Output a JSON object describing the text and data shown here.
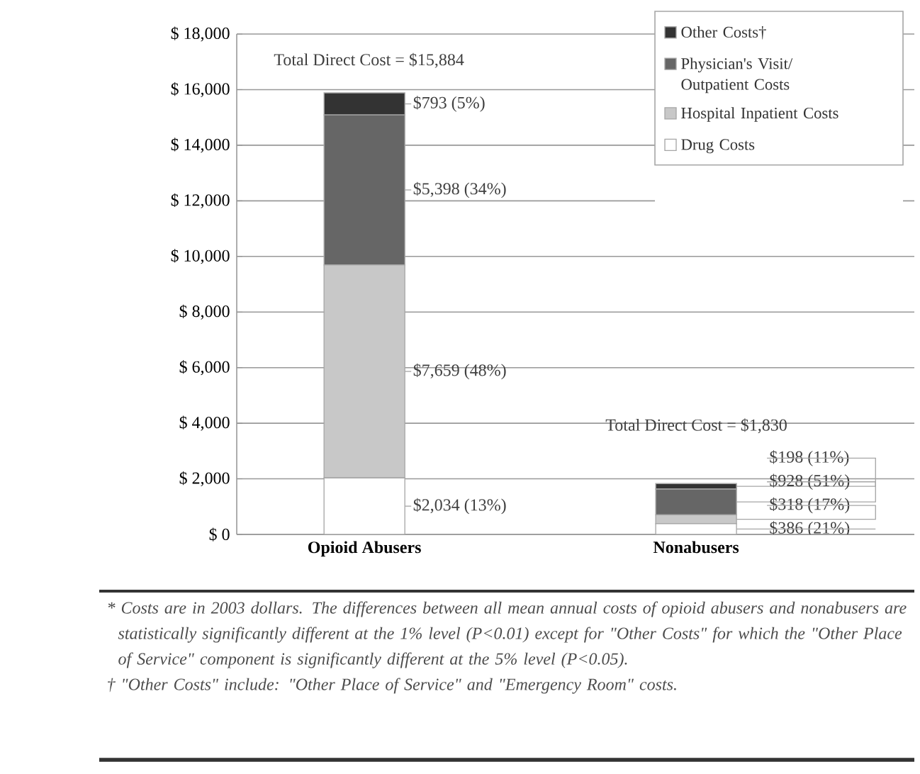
{
  "chart_data": {
    "type": "bar",
    "stacked": true,
    "categories": [
      "Opioid Abusers",
      "Nonabusers"
    ],
    "series": [
      {
        "name": "Drug Costs",
        "color": "#ffffff",
        "values": [
          2034,
          386
        ],
        "value_labels": [
          "$2,034 (13%)",
          "$386 (21%)"
        ]
      },
      {
        "name": "Hospital Inpatient Costs",
        "color": "#c8c8c8",
        "values": [
          7659,
          318
        ],
        "value_labels": [
          "$7,659 (48%)",
          "$318 (17%)"
        ]
      },
      {
        "name": "Physician's Visit/ Outpatient Costs",
        "color": "#666666",
        "values": [
          5398,
          928
        ],
        "value_labels": [
          "$5,398 (34%)",
          "$928 (51%)"
        ]
      },
      {
        "name": "Other Costs†",
        "color": "#333333",
        "values": [
          793,
          198
        ],
        "value_labels": [
          "$793 (5%)",
          "$198 (11%)"
        ]
      }
    ],
    "totals": [
      "Total Direct Cost = $15,884",
      "Total Direct Cost = $1,830"
    ],
    "ylim": [
      0,
      18000
    ],
    "yticks": [
      {
        "value": 0,
        "label": "$ 0"
      },
      {
        "value": 2000,
        "label": "$ 2,000"
      },
      {
        "value": 4000,
        "label": "$ 4,000"
      },
      {
        "value": 6000,
        "label": "$ 6,000"
      },
      {
        "value": 8000,
        "label": "$ 8,000"
      },
      {
        "value": 10000,
        "label": "$ 10,000"
      },
      {
        "value": 12000,
        "label": "$ 12,000"
      },
      {
        "value": 14000,
        "label": "$ 14,000"
      },
      {
        "value": 16000,
        "label": "$ 16,000"
      },
      {
        "value": 18000,
        "label": "$ 18,000"
      }
    ],
    "grid": "y",
    "legend": "top right",
    "annotations": [
      "* Costs are in 2003 dollars. The differences between all mean annual costs of opioid abusers and nonabusers are statistically significantly different at the 1% level (P<0.01) except for \"Other Costs\" for which the \"Other Place of Service\" component is significantly different at the 5% level (P<0.05).",
      "† \"Other Costs\" include: \"Other Place of Service\" and \"Emergency Room\" costs."
    ]
  }
}
